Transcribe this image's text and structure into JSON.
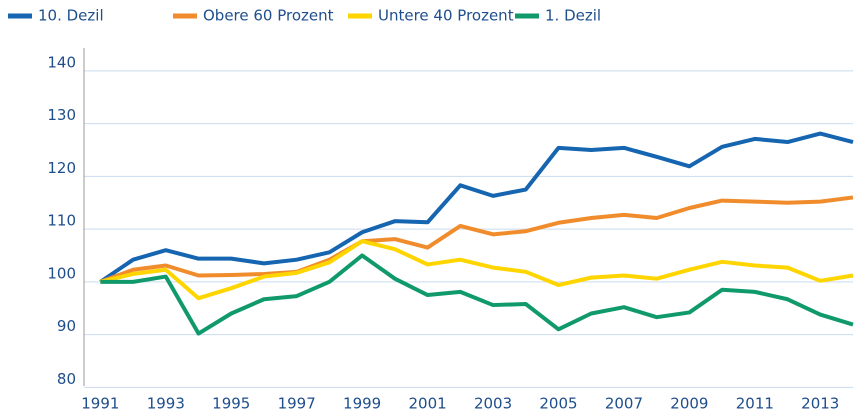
{
  "chart_data": {
    "type": "line",
    "x": [
      1991,
      1992,
      1993,
      1994,
      1995,
      1996,
      1997,
      1998,
      1999,
      2000,
      2001,
      2002,
      2003,
      2004,
      2005,
      2006,
      2007,
      2008,
      2009,
      2010,
      2011,
      2012,
      2013,
      2014
    ],
    "series": [
      {
        "name": "10. Dezil",
        "color": "#1565b0",
        "values": [
          100,
          104.2,
          106,
          104.4,
          104.4,
          103.5,
          104.2,
          105.6,
          109.4,
          111.5,
          111.3,
          118.3,
          116.3,
          117.5,
          125.4,
          125,
          125.4,
          123.7,
          121.9,
          125.6,
          127.1,
          126.5,
          128.1,
          126.5
        ]
      },
      {
        "name": "Obere 60 Prozent",
        "color": "#f08c2c",
        "values": [
          100,
          102.3,
          103.1,
          101.2,
          101.3,
          101.5,
          101.9,
          104.2,
          107.7,
          108.1,
          106.5,
          110.6,
          109,
          109.6,
          111.2,
          112.1,
          112.7,
          112.1,
          114,
          115.4,
          115.2,
          115,
          115.2,
          116
        ]
      },
      {
        "name": "Untere 40 Prozent",
        "color": "#ffd500",
        "values": [
          100,
          101.5,
          102.3,
          96.9,
          98.8,
          101,
          101.7,
          103.7,
          107.7,
          106.2,
          103.3,
          104.2,
          102.7,
          101.9,
          99.4,
          100.8,
          101.2,
          100.6,
          102.3,
          103.8,
          103.1,
          102.7,
          100.2,
          101.2
        ]
      },
      {
        "name": "1. Dezil",
        "color": "#109a6c",
        "values": [
          100,
          100,
          101,
          90.2,
          94,
          96.7,
          97.3,
          100,
          105,
          100.6,
          97.5,
          98.1,
          95.6,
          95.8,
          91,
          94,
          95.2,
          93.3,
          94.2,
          98.5,
          98.1,
          96.7,
          93.8,
          91.9
        ]
      }
    ],
    "xlim": [
      1990.5,
      2014
    ],
    "xticks": [
      1991,
      1993,
      1995,
      1997,
      1999,
      2001,
      2003,
      2005,
      2007,
      2009,
      2011,
      2013
    ],
    "ylim": [
      79.5,
      143
    ],
    "yticks": [
      80,
      90,
      100,
      110,
      120,
      130,
      140
    ],
    "grid": true,
    "legend": "top"
  }
}
